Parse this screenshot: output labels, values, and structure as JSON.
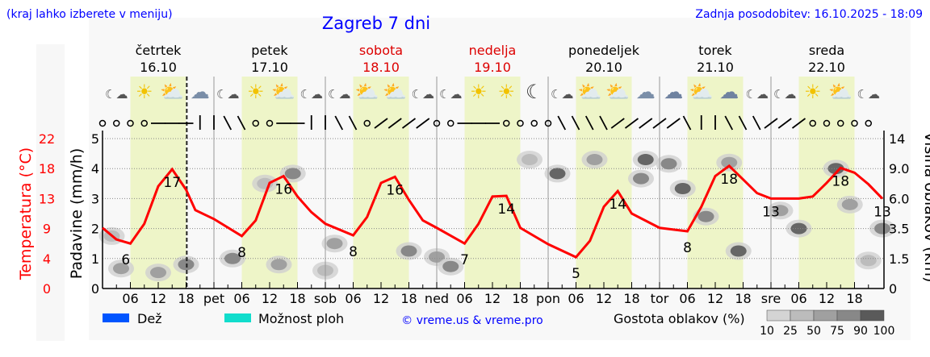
{
  "header": {
    "hint": "(kraj lahko izberete v meniju)",
    "title": "Zagreb 7 dni",
    "updated": "Zadnja posodobitev: 16.10.2025 - 18:09"
  },
  "colors": {
    "accent": "#0000ff",
    "temperature": "#ff0000",
    "weekend": "#dd0000",
    "daylight": "#eef5c8",
    "rain": "#0055ff",
    "showers": "#11ddcc"
  },
  "days": [
    {
      "name": "četrtek",
      "date": "16.10",
      "weekend": false
    },
    {
      "name": "petek",
      "date": "17.10",
      "weekend": false
    },
    {
      "name": "sobota",
      "date": "18.10",
      "weekend": true
    },
    {
      "name": "nedelja",
      "date": "19.10",
      "weekend": true
    },
    {
      "name": "ponedeljek",
      "date": "20.10",
      "weekend": false
    },
    {
      "name": "torek",
      "date": "21.10",
      "weekend": false
    },
    {
      "name": "sreda",
      "date": "22.10",
      "weekend": false
    }
  ],
  "weather_icons": [
    "moon-cloud",
    "sun",
    "sun-cloud",
    "cloud",
    "moon-cloud",
    "sun",
    "sun-cloud",
    "moon-cloud",
    "moon-cloud",
    "sun-cloud",
    "sun-cloud",
    "moon-cloud",
    "moon-cloud",
    "sun",
    "sun",
    "moon",
    "moon-cloud",
    "sun-cloud",
    "sun-cloud",
    "cloud",
    "clouds",
    "sun-cloud",
    "clouds",
    "moon-cloud",
    "moon-cloud",
    "sun",
    "sun-cloud",
    "moon-cloud"
  ],
  "wind_symbols": [
    "calm",
    "calm",
    "calm",
    "calm",
    "W",
    "W",
    "W",
    "N",
    "N",
    "NW",
    "NW",
    "calm",
    "calm",
    "W",
    "W",
    "N",
    "N",
    "NW",
    "NW",
    "calm",
    "SW",
    "SW",
    "SW",
    "SW",
    "calm",
    "calm",
    "W",
    "W",
    "W",
    "calm",
    "calm",
    "calm",
    "calm",
    "NW",
    "NW",
    "NW",
    "NW",
    "SW",
    "SW",
    "SW",
    "SW",
    "SW",
    "NW",
    "N",
    "N",
    "NW",
    "NW",
    "NW",
    "SW",
    "SW",
    "SW",
    "calm",
    "calm",
    "calm",
    "calm",
    "calm"
  ],
  "chart_data": {
    "type": "line",
    "xlabel": "",
    "x_ticks": [
      "06",
      "12",
      "18",
      "pet",
      "06",
      "12",
      "18",
      "sob",
      "06",
      "12",
      "18",
      "ned",
      "06",
      "12",
      "18",
      "pon",
      "06",
      "12",
      "18",
      "tor",
      "06",
      "12",
      "18",
      "sre",
      "06",
      "12",
      "18"
    ],
    "current_time_marker": "16.10 18:09",
    "daylight_hours": [
      6,
      18
    ],
    "left_axes": [
      {
        "label": "Temperatura (°C)",
        "ticks": [
          "0",
          "4",
          "9",
          "13",
          "18",
          "22"
        ],
        "range": [
          0,
          22
        ]
      },
      {
        "label": "Padavine (mm/h)",
        "ticks": [
          "0",
          "1",
          "2",
          "3",
          "4",
          "5"
        ],
        "range": [
          0,
          5
        ]
      }
    ],
    "right_axis": {
      "label": "Višina oblakov (km)",
      "ticks": [
        "0",
        "1.5",
        "3.5",
        "6.0",
        "9.0",
        "14"
      ]
    },
    "grid": true,
    "series": [
      {
        "name": "Temperatura",
        "unit": "°C",
        "x_hours_from_start": [
          0,
          3,
          6,
          9,
          12,
          15,
          18,
          20,
          24,
          30,
          33,
          36,
          39,
          42,
          45,
          48,
          54,
          57,
          60,
          63,
          66,
          69,
          72,
          78,
          81,
          84,
          87,
          90,
          96,
          102,
          105,
          108,
          111,
          114,
          120,
          126,
          129,
          132,
          135,
          138,
          141,
          144,
          150,
          153,
          156,
          159,
          162,
          165,
          168
        ],
        "values": [
          8.9,
          7.2,
          6.6,
          9.5,
          15.0,
          17.5,
          14.5,
          11.5,
          10.2,
          7.7,
          10.0,
          15.5,
          16.5,
          13.5,
          11.2,
          9.5,
          7.8,
          10.5,
          15.5,
          16.4,
          13.0,
          10.0,
          8.9,
          6.6,
          9.5,
          13.5,
          13.6,
          8.9,
          6.5,
          4.6,
          7.0,
          12.0,
          14.3,
          11.0,
          8.9,
          8.4,
          12.0,
          16.5,
          18.0,
          16.0,
          14.0,
          13.2,
          13.2,
          13.5,
          15.5,
          17.7,
          17.0,
          15.3,
          13.2
        ]
      }
    ],
    "temperature_labels": [
      {
        "hour": 5,
        "text": "6"
      },
      {
        "hour": 15,
        "text": "17"
      },
      {
        "hour": 30,
        "text": "8"
      },
      {
        "hour": 39,
        "text": "16"
      },
      {
        "hour": 54,
        "text": "8"
      },
      {
        "hour": 63,
        "text": "16"
      },
      {
        "hour": 78,
        "text": "7"
      },
      {
        "hour": 87,
        "text": "14"
      },
      {
        "hour": 102,
        "text": "5"
      },
      {
        "hour": 111,
        "text": "14"
      },
      {
        "hour": 126,
        "text": "8"
      },
      {
        "hour": 135,
        "text": "18"
      },
      {
        "hour": 144,
        "text": "13"
      },
      {
        "hour": 159,
        "text": "18"
      },
      {
        "hour": 168,
        "text": "13"
      }
    ],
    "cloud_patches": [
      {
        "hour": 4,
        "km": 1.0,
        "density": 50
      },
      {
        "hour": 12,
        "km": 0.8,
        "density": 50
      },
      {
        "hour": 18,
        "km": 1.2,
        "density": 75
      },
      {
        "hour": 2,
        "km": 3.0,
        "density": 25
      },
      {
        "hour": 28,
        "km": 1.5,
        "density": 75
      },
      {
        "hour": 38,
        "km": 1.2,
        "density": 50
      },
      {
        "hour": 41,
        "km": 8.5,
        "density": 75
      },
      {
        "hour": 35,
        "km": 7.5,
        "density": 25
      },
      {
        "hour": 48,
        "km": 0.9,
        "density": 25
      },
      {
        "hour": 50,
        "km": 2.5,
        "density": 50
      },
      {
        "hour": 66,
        "km": 2.0,
        "density": 75
      },
      {
        "hour": 72,
        "km": 1.6,
        "density": 50
      },
      {
        "hour": 75,
        "km": 1.1,
        "density": 75
      },
      {
        "hour": 92,
        "km": 10.5,
        "density": 25
      },
      {
        "hour": 98,
        "km": 8.5,
        "density": 90
      },
      {
        "hour": 106,
        "km": 10.5,
        "density": 50
      },
      {
        "hour": 117,
        "km": 10.5,
        "density": 90
      },
      {
        "hour": 116,
        "km": 8.0,
        "density": 75
      },
      {
        "hour": 122,
        "km": 9.8,
        "density": 75
      },
      {
        "hour": 125,
        "km": 7.0,
        "density": 90
      },
      {
        "hour": 135,
        "km": 10.0,
        "density": 50
      },
      {
        "hour": 130,
        "km": 4.5,
        "density": 75
      },
      {
        "hour": 137,
        "km": 2.0,
        "density": 90
      },
      {
        "hour": 146,
        "km": 5.0,
        "density": 50
      },
      {
        "hour": 150,
        "km": 3.5,
        "density": 90
      },
      {
        "hour": 158,
        "km": 9.0,
        "density": 90
      },
      {
        "hour": 161,
        "km": 5.5,
        "density": 50
      },
      {
        "hour": 165,
        "km": 1.4,
        "density": 25
      },
      {
        "hour": 168,
        "km": 3.5,
        "density": 75
      }
    ]
  },
  "legend": {
    "rain": "Dež",
    "showers": "Možnost ploh",
    "credit": "© vreme.us & vreme.pro",
    "cloud_density": "Gostota oblakov (%)",
    "density_scale": [
      "10",
      "25",
      "50",
      "75",
      "90",
      "100"
    ]
  }
}
